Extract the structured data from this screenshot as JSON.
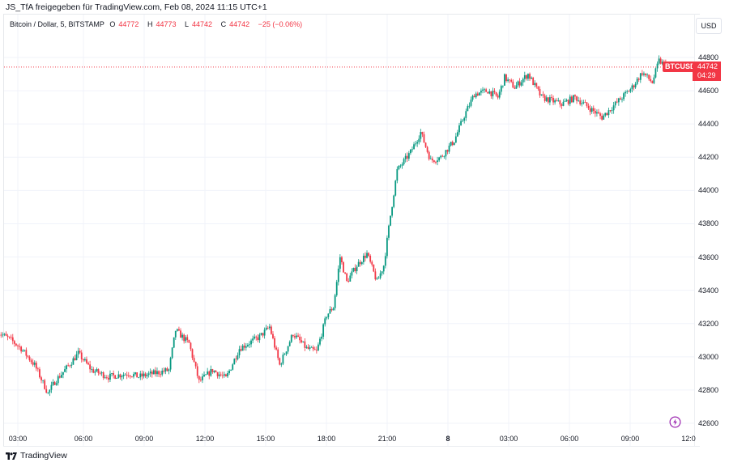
{
  "caption": "JS_TfA freigegeben für TradingView.com, Feb 08, 2024 11:15 UTC+1",
  "legend": {
    "symbol": "Bitcoin / Dollar, 5, BITSTAMP",
    "o_label": "O",
    "o": "44772",
    "h_label": "H",
    "h": "44773",
    "l_label": "L",
    "l": "44742",
    "c_label": "C",
    "c": "44742",
    "change": "−25 (−0.06%)"
  },
  "currency_button": "USD",
  "symbol_tag": "BTCUSD",
  "last_price": "44742",
  "countdown": "04:29",
  "brand": "TradingView",
  "colors": {
    "up": "#089981",
    "down": "#f23645",
    "grid": "#f0f3fa",
    "axis_text": "#131722",
    "accent": "#9c27b0"
  },
  "chart_data": {
    "type": "candlestick",
    "title": "Bitcoin / Dollar, 5, BITSTAMP",
    "xlabel": "",
    "ylabel": "USD",
    "interval": "5m",
    "ylim": [
      42550,
      44850
    ],
    "y_ticks": [
      44800,
      44600,
      44400,
      44200,
      44000,
      43800,
      43600,
      43400,
      43200,
      43000,
      42800,
      42600
    ],
    "x_ticks": [
      "03:00",
      "06:00",
      "09:00",
      "12:00",
      "15:00",
      "18:00",
      "21:00",
      "8",
      "03:00",
      "06:00",
      "09:00",
      "12:0"
    ],
    "last_close": 44742,
    "ohlc_last": {
      "open": 44772,
      "high": 44773,
      "low": 44742,
      "close": 44742,
      "change": -25,
      "change_pct": -0.06
    },
    "price_path_keypoints": [
      [
        "02:00",
        43150
      ],
      [
        "02:40",
        43100
      ],
      [
        "03:10",
        43050
      ],
      [
        "03:50",
        42950
      ],
      [
        "04:30",
        42780
      ],
      [
        "04:50",
        42850
      ],
      [
        "05:20",
        42920
      ],
      [
        "06:00",
        43020
      ],
      [
        "06:40",
        42920
      ],
      [
        "07:30",
        42880
      ],
      [
        "08:30",
        42900
      ],
      [
        "09:00",
        42880
      ],
      [
        "10:30",
        42920
      ],
      [
        "10:50",
        43160
      ],
      [
        "11:30",
        43080
      ],
      [
        "12:00",
        42850
      ],
      [
        "12:40",
        42920
      ],
      [
        "13:20",
        42870
      ],
      [
        "14:00",
        43050
      ],
      [
        "15:00",
        43120
      ],
      [
        "15:30",
        43180
      ],
      [
        "16:00",
        42950
      ],
      [
        "16:40",
        43140
      ],
      [
        "17:20",
        43050
      ],
      [
        "17:50",
        43030
      ],
      [
        "18:20",
        43250
      ],
      [
        "18:40",
        43300
      ],
      [
        "19:00",
        43600
      ],
      [
        "19:20",
        43450
      ],
      [
        "19:50",
        43550
      ],
      [
        "20:20",
        43620
      ],
      [
        "20:50",
        43450
      ],
      [
        "21:10",
        43550
      ],
      [
        "21:30",
        43850
      ],
      [
        "21:50",
        44120
      ],
      [
        "22:30",
        44230
      ],
      [
        "23:00",
        44350
      ],
      [
        "23:30",
        44180
      ],
      [
        "00:00",
        44200
      ],
      [
        "00:40",
        44300
      ],
      [
        "01:10",
        44450
      ],
      [
        "01:40",
        44580
      ],
      [
        "02:20",
        44600
      ],
      [
        "02:50",
        44560
      ],
      [
        "03:10",
        44680
      ],
      [
        "03:40",
        44620
      ],
      [
        "04:20",
        44700
      ],
      [
        "05:00",
        44560
      ],
      [
        "06:00",
        44520
      ],
      [
        "06:40",
        44560
      ],
      [
        "07:20",
        44500
      ],
      [
        "08:00",
        44440
      ],
      [
        "08:40",
        44520
      ],
      [
        "09:30",
        44620
      ],
      [
        "10:00",
        44710
      ],
      [
        "10:30",
        44650
      ],
      [
        "10:50",
        44780
      ],
      [
        "11:15",
        44742
      ]
    ]
  }
}
